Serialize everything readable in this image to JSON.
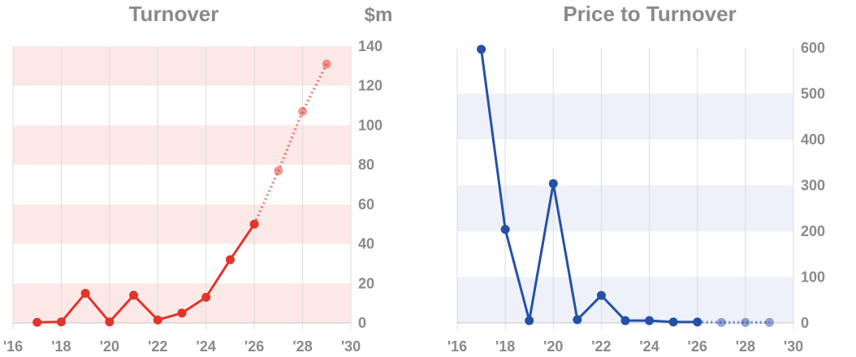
{
  "chart_data": [
    {
      "type": "line",
      "title": "Turnover",
      "unit_label": "$m",
      "xlim": [
        2016,
        2030
      ],
      "ylim": [
        0,
        140
      ],
      "x_ticks": [
        2016,
        2018,
        2020,
        2022,
        2024,
        2026,
        2028,
        2030
      ],
      "x_tick_labels": [
        "'16",
        "'18",
        "'20",
        "'22",
        "'24",
        "'26",
        "'28",
        "'30"
      ],
      "y_ticks": [
        0,
        20,
        40,
        60,
        80,
        100,
        120,
        140
      ],
      "y_tick_labels": [
        "0",
        "20",
        "40",
        "60",
        "80",
        "100",
        "120",
        "140"
      ],
      "y_axis_side": "right",
      "grid": true,
      "color": "#e0352b",
      "band_color": "#fce9e7",
      "series": [
        {
          "x": [
            2017,
            2018,
            2019,
            2020,
            2021,
            2022,
            2023,
            2024,
            2025,
            2026
          ],
          "y": [
            0.3,
            0.5,
            15,
            0.5,
            14,
            1.5,
            5,
            13,
            32,
            50
          ],
          "style": "solid"
        },
        {
          "x": [
            2026,
            2027,
            2028,
            2029
          ],
          "y": [
            50,
            77,
            107,
            131
          ],
          "style": "dotted-forecast"
        }
      ]
    },
    {
      "type": "line",
      "title": "Price to Turnover",
      "xlim": [
        2016,
        2030
      ],
      "ylim": [
        0,
        600
      ],
      "x_ticks": [
        2016,
        2018,
        2020,
        2022,
        2024,
        2026,
        2028,
        2030
      ],
      "x_tick_labels": [
        "'16",
        "'18",
        "'20",
        "'22",
        "'24",
        "'26",
        "'28",
        "'30"
      ],
      "y_ticks": [
        0,
        100,
        200,
        300,
        400,
        500,
        600
      ],
      "y_tick_labels": [
        "0",
        "100",
        "200",
        "300",
        "400",
        "500",
        "600"
      ],
      "y_axis_side": "right",
      "grid": true,
      "color": "#2550a8",
      "band_color": "#eef1fa",
      "series": [
        {
          "x": [
            2017,
            2018,
            2019,
            2020,
            2021,
            2022,
            2023,
            2024,
            2025,
            2026
          ],
          "y": [
            597,
            204,
            5,
            304,
            7,
            60,
            5,
            5,
            2,
            2
          ],
          "style": "solid"
        },
        {
          "x": [
            2026,
            2027,
            2028,
            2029
          ],
          "y": [
            2,
            1,
            1,
            1
          ],
          "style": "dotted-forecast"
        }
      ]
    }
  ]
}
